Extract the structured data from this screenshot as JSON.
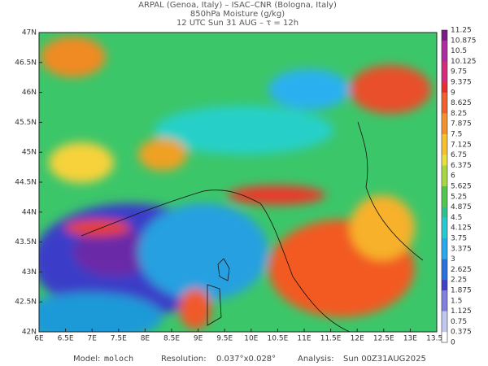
{
  "header": {
    "lines": [
      "ARPAL (Genoa, Italy)  –  ISAC–CNR (Bologna, Italy)",
      "850hPa Moisture (g/kg)",
      "12 UTC Sun 31 AUG  –  τ = 12h"
    ]
  },
  "map": {
    "lon_labels": [
      "6E",
      "6.5E",
      "7E",
      "7.5E",
      "8E",
      "8.5E",
      "9E",
      "9.5E",
      "10E",
      "10.5E",
      "11E",
      "11.5E",
      "12E",
      "12.5E",
      "13E",
      "13.5E"
    ],
    "lat_labels": [
      "47N",
      "46.5N",
      "46N",
      "45.5N",
      "45N",
      "44.5N",
      "44N",
      "43.5N",
      "43N",
      "42.5N",
      "42N"
    ]
  },
  "colorbar": {
    "labels": [
      "11.25",
      "10.875",
      "10.5",
      "10.125",
      "9.75",
      "9.375",
      "9",
      "8.625",
      "8.25",
      "7.875",
      "7.5",
      "7.125",
      "6.75",
      "6.375",
      "6",
      "5.625",
      "5.25",
      "4.875",
      "4.5",
      "4.125",
      "3.75",
      "3.375",
      "3",
      "2.625",
      "2.25",
      "1.875",
      "1.5",
      "1.125",
      "0.75",
      "0.375",
      "0"
    ]
  },
  "footer": {
    "model_label": "Model:",
    "model": "moloch",
    "resolution_label": "Resolution:",
    "resolution": "0.037°x0.028°",
    "analysis_label": "Analysis:",
    "analysis": "Sun 00Z31AUG2025"
  }
}
